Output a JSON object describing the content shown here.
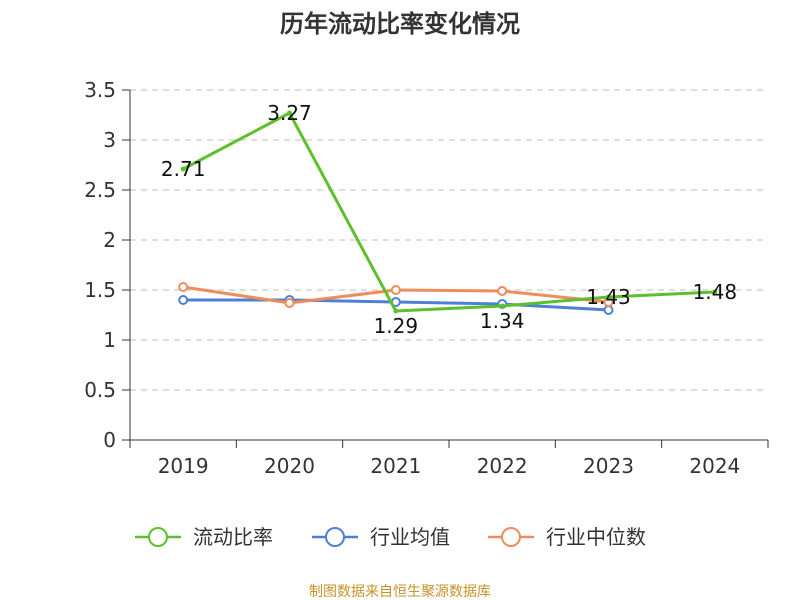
{
  "chart_data": {
    "type": "line",
    "title": "历年流动比率变化情况",
    "xlabel": "",
    "ylabel": "",
    "categories": [
      "2019",
      "2020",
      "2021",
      "2022",
      "2023",
      "2024"
    ],
    "ylim": [
      0,
      3.5
    ],
    "yticks": [
      "0",
      "0.5",
      "1",
      "1.5",
      "2",
      "2.5",
      "3",
      "3.5"
    ],
    "grid": true,
    "legend_position": "bottom",
    "series": [
      {
        "name": "流动比率",
        "color": "#5cc02d",
        "values": [
          2.71,
          3.27,
          1.29,
          1.34,
          1.43,
          1.48
        ],
        "labels": [
          "2.71",
          "3.27",
          "1.29",
          "1.34",
          "1.43",
          "1.48"
        ]
      },
      {
        "name": "行业均值",
        "color": "#4e7fd6",
        "values": [
          1.4,
          1.4,
          1.38,
          1.36,
          1.3,
          null
        ]
      },
      {
        "name": "行业中位数",
        "color": "#f08c5c",
        "values": [
          1.53,
          1.37,
          1.5,
          1.49,
          1.38,
          null
        ]
      }
    ]
  },
  "source": "制图数据来自恒生聚源数据库"
}
